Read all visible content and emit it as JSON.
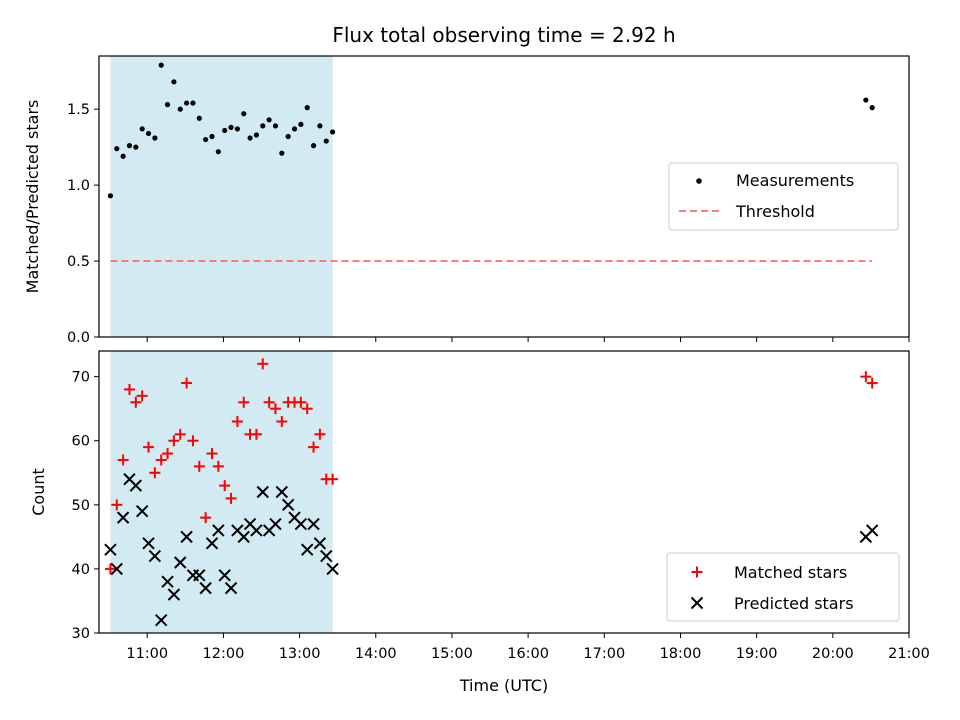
{
  "colors": {
    "shade": "#add8e6",
    "measurement": "#000000",
    "threshold": "#ff7b7b",
    "matched": "#ff0000",
    "predicted": "#000000"
  },
  "chart_data": [
    {
      "type": "scatter",
      "title": "Flux total observing time = 2.92 h",
      "xlabel": "",
      "ylabel": "Matched/Predicted stars",
      "x_axis": "time (UTC)",
      "xlim": [
        "10:22",
        "21:00"
      ],
      "ylim": [
        0,
        1.85
      ],
      "yticks": [
        "0.0",
        "0.5",
        "1.0",
        "1.5"
      ],
      "shaded_interval": [
        "10:31",
        "13:26"
      ],
      "legend_position": "center-right",
      "series": [
        {
          "name": "Measurements",
          "marker": "dot",
          "points": [
            [
              "10:31",
              0.93
            ],
            [
              "10:36",
              1.24
            ],
            [
              "10:41",
              1.19
            ],
            [
              "10:46",
              1.26
            ],
            [
              "10:51",
              1.25
            ],
            [
              "10:56",
              1.37
            ],
            [
              "11:01",
              1.34
            ],
            [
              "11:06",
              1.31
            ],
            [
              "11:11",
              1.79
            ],
            [
              "11:16",
              1.53
            ],
            [
              "11:21",
              1.68
            ],
            [
              "11:26",
              1.5
            ],
            [
              "11:31",
              1.54
            ],
            [
              "11:36",
              1.54
            ],
            [
              "11:41",
              1.44
            ],
            [
              "11:46",
              1.3
            ],
            [
              "11:51",
              1.32
            ],
            [
              "11:56",
              1.22
            ],
            [
              "12:01",
              1.36
            ],
            [
              "12:06",
              1.38
            ],
            [
              "12:11",
              1.37
            ],
            [
              "12:16",
              1.47
            ],
            [
              "12:21",
              1.31
            ],
            [
              "12:26",
              1.33
            ],
            [
              "12:31",
              1.39
            ],
            [
              "12:36",
              1.43
            ],
            [
              "12:41",
              1.39
            ],
            [
              "12:46",
              1.21
            ],
            [
              "12:51",
              1.32
            ],
            [
              "12:56",
              1.37
            ],
            [
              "13:01",
              1.4
            ],
            [
              "13:06",
              1.51
            ],
            [
              "13:11",
              1.26
            ],
            [
              "13:16",
              1.39
            ],
            [
              "13:21",
              1.29
            ],
            [
              "13:26",
              1.35
            ],
            [
              "20:26",
              1.56
            ],
            [
              "20:31",
              1.51
            ]
          ]
        },
        {
          "name": "Threshold",
          "style": "dashed-line",
          "points": [
            [
              "10:31",
              0.5
            ],
            [
              "20:31",
              0.5
            ]
          ]
        }
      ]
    },
    {
      "type": "scatter",
      "title": "",
      "xlabel": "Time (UTC)",
      "ylabel": "Count",
      "x_axis": "time (UTC)",
      "xlim": [
        "10:22",
        "21:00"
      ],
      "ylim": [
        30,
        74
      ],
      "yticks": [
        "30",
        "40",
        "50",
        "60",
        "70"
      ],
      "xticks": [
        "11:00",
        "12:00",
        "13:00",
        "14:00",
        "15:00",
        "16:00",
        "17:00",
        "18:00",
        "19:00",
        "20:00",
        "21:00"
      ],
      "shaded_interval": [
        "10:31",
        "13:26"
      ],
      "legend_position": "lower-right",
      "series": [
        {
          "name": "Matched stars",
          "marker": "plus",
          "points": [
            [
              "10:31",
              40
            ],
            [
              "10:36",
              50
            ],
            [
              "10:41",
              57
            ],
            [
              "10:46",
              68
            ],
            [
              "10:51",
              66
            ],
            [
              "10:56",
              67
            ],
            [
              "11:01",
              59
            ],
            [
              "11:06",
              55
            ],
            [
              "11:11",
              57
            ],
            [
              "11:16",
              58
            ],
            [
              "11:21",
              60
            ],
            [
              "11:26",
              61
            ],
            [
              "11:31",
              69
            ],
            [
              "11:36",
              60
            ],
            [
              "11:41",
              56
            ],
            [
              "11:46",
              48
            ],
            [
              "11:51",
              58
            ],
            [
              "11:56",
              56
            ],
            [
              "12:01",
              53
            ],
            [
              "12:06",
              51
            ],
            [
              "12:11",
              63
            ],
            [
              "12:16",
              66
            ],
            [
              "12:21",
              61
            ],
            [
              "12:26",
              61
            ],
            [
              "12:31",
              72
            ],
            [
              "12:36",
              66
            ],
            [
              "12:41",
              65
            ],
            [
              "12:46",
              63
            ],
            [
              "12:51",
              66
            ],
            [
              "12:56",
              66
            ],
            [
              "13:01",
              66
            ],
            [
              "13:06",
              65
            ],
            [
              "13:11",
              59
            ],
            [
              "13:16",
              61
            ],
            [
              "13:21",
              54
            ],
            [
              "13:26",
              54
            ],
            [
              "20:26",
              70
            ],
            [
              "20:31",
              69
            ]
          ]
        },
        {
          "name": "Predicted stars",
          "marker": "x",
          "points": [
            [
              "10:31",
              43
            ],
            [
              "10:36",
              40
            ],
            [
              "10:41",
              48
            ],
            [
              "10:46",
              54
            ],
            [
              "10:51",
              53
            ],
            [
              "10:56",
              49
            ],
            [
              "11:01",
              44
            ],
            [
              "11:06",
              42
            ],
            [
              "11:11",
              32
            ],
            [
              "11:16",
              38
            ],
            [
              "11:21",
              36
            ],
            [
              "11:26",
              41
            ],
            [
              "11:31",
              45
            ],
            [
              "11:36",
              39
            ],
            [
              "11:41",
              39
            ],
            [
              "11:46",
              37
            ],
            [
              "11:51",
              44
            ],
            [
              "11:56",
              46
            ],
            [
              "12:01",
              39
            ],
            [
              "12:06",
              37
            ],
            [
              "12:11",
              46
            ],
            [
              "12:16",
              45
            ],
            [
              "12:21",
              47
            ],
            [
              "12:26",
              46
            ],
            [
              "12:31",
              52
            ],
            [
              "12:36",
              46
            ],
            [
              "12:41",
              47
            ],
            [
              "12:46",
              52
            ],
            [
              "12:51",
              50
            ],
            [
              "12:56",
              48
            ],
            [
              "13:01",
              47
            ],
            [
              "13:06",
              43
            ],
            [
              "13:11",
              47
            ],
            [
              "13:16",
              44
            ],
            [
              "13:21",
              42
            ],
            [
              "13:26",
              40
            ],
            [
              "20:26",
              45
            ],
            [
              "20:31",
              46
            ]
          ]
        }
      ]
    }
  ]
}
